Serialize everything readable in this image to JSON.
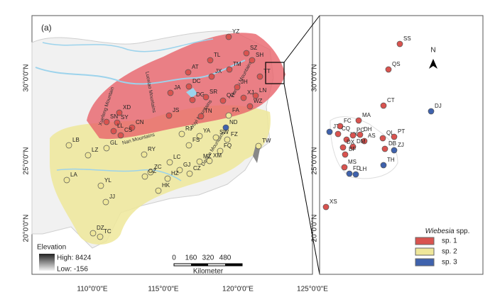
{
  "panel_label": "(a)",
  "lat_labels_left": [
    "30°0'0\"N",
    "25°0'0\"N",
    "20°0'0\"N"
  ],
  "lat_labels_mid": [
    "30°0'0\"N",
    "25°0'0\"N",
    "20°0'0\"N"
  ],
  "lon_labels": [
    "110°0'0\"E",
    "115°0'0\"E",
    "120°0'0\"E",
    "125°0'0\"E"
  ],
  "mountains": [
    "Xuefeng Mountain",
    "Luoxiao Mountains",
    "Wuyi Mountains",
    "Tianmu Mountains",
    "Nan Mountains",
    "Daiyun Mountains"
  ],
  "map_sites": [
    {
      "label": "YZ",
      "sp": 0
    },
    {
      "label": "SZ",
      "sp": 0
    },
    {
      "label": "SH",
      "sp": 0
    },
    {
      "label": "TL",
      "sp": 0
    },
    {
      "label": "TM",
      "sp": 0
    },
    {
      "label": "AT",
      "sp": 0
    },
    {
      "label": "JX",
      "sp": 0
    },
    {
      "label": "DC",
      "sp": 0
    },
    {
      "label": "TT",
      "sp": 0
    },
    {
      "label": "JA",
      "sp": 0
    },
    {
      "label": "DG",
      "sp": 0
    },
    {
      "label": "SR",
      "sp": 0
    },
    {
      "label": "JH",
      "sp": 0
    },
    {
      "label": "LN",
      "sp": 0
    },
    {
      "label": "XJ",
      "sp": 0
    },
    {
      "label": "QZ",
      "sp": 0
    },
    {
      "label": "WZ",
      "sp": 0
    },
    {
      "label": "JS",
      "sp": 0
    },
    {
      "label": "XD",
      "sp": 0
    },
    {
      "label": "SN",
      "sp": 0
    },
    {
      "label": "SY",
      "sp": 0
    },
    {
      "label": "CN",
      "sp": 0
    },
    {
      "label": "LL",
      "sp": 0
    },
    {
      "label": "CS",
      "sp": 0
    },
    {
      "label": "TN",
      "sp": 0
    },
    {
      "label": "FA",
      "sp": 1
    },
    {
      "label": "ND",
      "sp": 2
    },
    {
      "label": "RJ",
      "sp": 1
    },
    {
      "label": "YA",
      "sp": 1
    },
    {
      "label": "SW",
      "sp": 1
    },
    {
      "label": "FS",
      "sp": 1
    },
    {
      "label": "FZ",
      "sp": 1
    },
    {
      "label": "FQ",
      "sp": 1
    },
    {
      "label": "TW",
      "sp": 1
    },
    {
      "label": "LB",
      "sp": 1
    },
    {
      "label": "LZ",
      "sp": 1
    },
    {
      "label": "GL",
      "sp": 1
    },
    {
      "label": "RY",
      "sp": 1
    },
    {
      "label": "LC",
      "sp": 1
    },
    {
      "label": "ZC",
      "sp": 1
    },
    {
      "label": "GJ",
      "sp": 1
    },
    {
      "label": "MZ",
      "sp": 1
    },
    {
      "label": "XM",
      "sp": 1
    },
    {
      "label": "GZ",
      "sp": 1
    },
    {
      "label": "HZ",
      "sp": 1
    },
    {
      "label": "CZ",
      "sp": 1
    },
    {
      "label": "LA",
      "sp": 1
    },
    {
      "label": "YL",
      "sp": 1
    },
    {
      "label": "JJ",
      "sp": 1
    },
    {
      "label": "HK",
      "sp": 1
    },
    {
      "label": "DZ",
      "sp": 1
    },
    {
      "label": "TC",
      "sp": 1
    }
  ],
  "inset_sites": [
    {
      "label": "SS",
      "sp": 0
    },
    {
      "label": "QS",
      "sp": 0
    },
    {
      "label": "CT",
      "sp": 0
    },
    {
      "label": "DJ",
      "sp": 2
    },
    {
      "label": "MA",
      "sp": 0
    },
    {
      "label": "JT",
      "sp": 2
    },
    {
      "label": "FC",
      "sp": 0
    },
    {
      "label": "CQ",
      "sp": 0
    },
    {
      "label": "XX",
      "sp": 0
    },
    {
      "label": "PC",
      "sp": 0
    },
    {
      "label": "DH",
      "sp": 0
    },
    {
      "label": "AS",
      "sp": 0
    },
    {
      "label": "QL",
      "sp": 0
    },
    {
      "label": "PT",
      "sp": 0
    },
    {
      "label": "DX",
      "sp": 0
    },
    {
      "label": "DM",
      "sp": 0
    },
    {
      "label": "DB",
      "sp": 0
    },
    {
      "label": "ZJ",
      "sp": 2
    },
    {
      "label": "BF",
      "sp": 0
    },
    {
      "label": "MS",
      "sp": 0
    },
    {
      "label": "TH",
      "sp": 2
    },
    {
      "label": "FD",
      "sp": 2
    },
    {
      "label": "LH",
      "sp": 2
    },
    {
      "label": "XS",
      "sp": 0
    }
  ],
  "elevation": {
    "title": "Elevation",
    "high": "High: 8424",
    "low": "Low: -156"
  },
  "scale": {
    "ticks": [
      0,
      160,
      320,
      480
    ],
    "unit": "Kilometer"
  },
  "north": "N",
  "legend": {
    "genus": "Wiebesia",
    "suffix": "spp.",
    "items": [
      {
        "label": "sp. 1",
        "color": "#d9534f"
      },
      {
        "label": "sp. 2",
        "color": "#efe79a"
      },
      {
        "label": "sp. 3",
        "color": "#3f62ad"
      }
    ]
  }
}
